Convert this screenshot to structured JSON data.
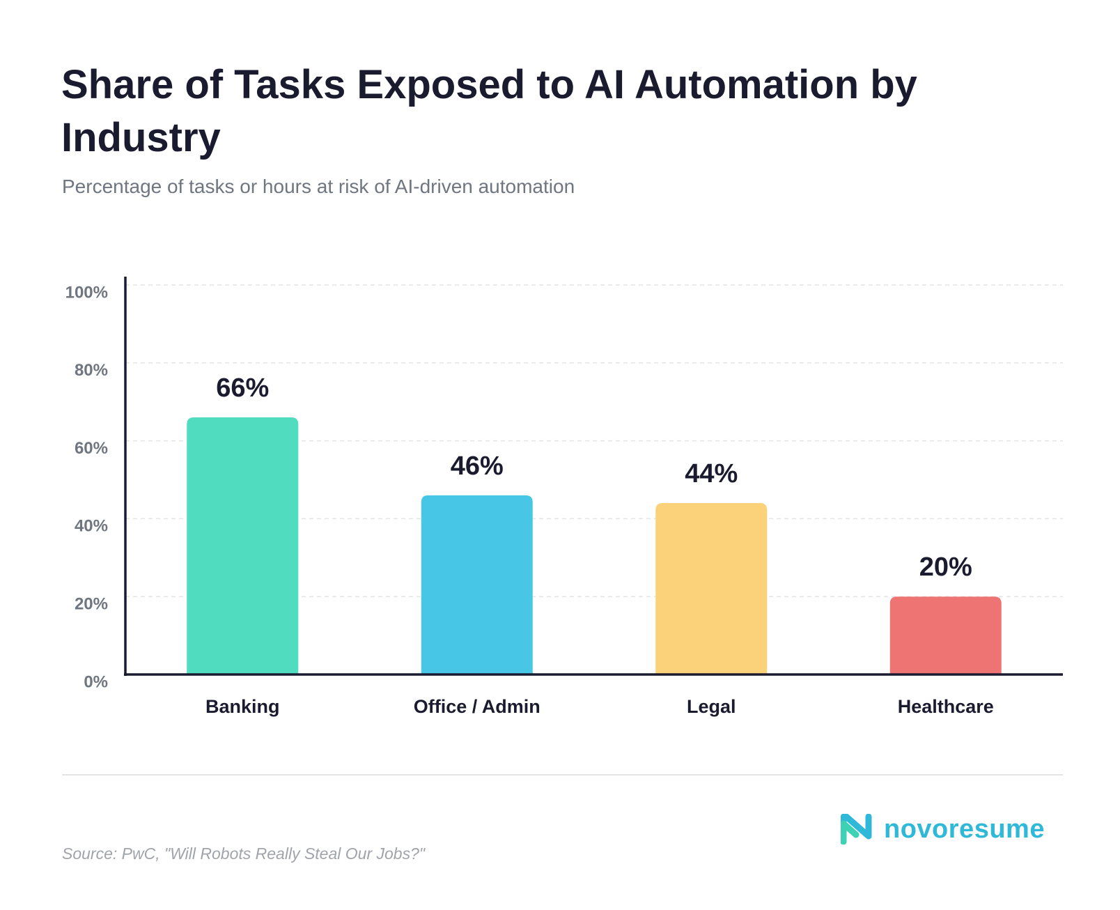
{
  "chart_data": {
    "type": "bar",
    "title": "Share of Tasks Exposed to AI Automation by Industry",
    "subtitle": "Percentage of tasks or hours at risk of AI-driven automation",
    "categories": [
      "Banking",
      "Office / Admin",
      "Legal",
      "Healthcare"
    ],
    "values": [
      66,
      46,
      44,
      20
    ],
    "value_labels": [
      "66%",
      "46%",
      "44%",
      "20%"
    ],
    "colors": [
      "#4fdcbf",
      "#48c6e6",
      "#fbd27a",
      "#ee7474"
    ],
    "ylim": [
      0,
      100
    ],
    "yticks": [
      {
        "value": 0,
        "label": "0%"
      },
      {
        "value": 20,
        "label": "20%"
      },
      {
        "value": 40,
        "label": "40%"
      },
      {
        "value": 60,
        "label": "60%"
      },
      {
        "value": 80,
        "label": "80%"
      },
      {
        "value": 100,
        "label": "100%"
      }
    ],
    "grid": true,
    "source": "Source: PwC, \"Will Robots Really Steal Our Jobs?\"",
    "brand": "novoresume"
  }
}
